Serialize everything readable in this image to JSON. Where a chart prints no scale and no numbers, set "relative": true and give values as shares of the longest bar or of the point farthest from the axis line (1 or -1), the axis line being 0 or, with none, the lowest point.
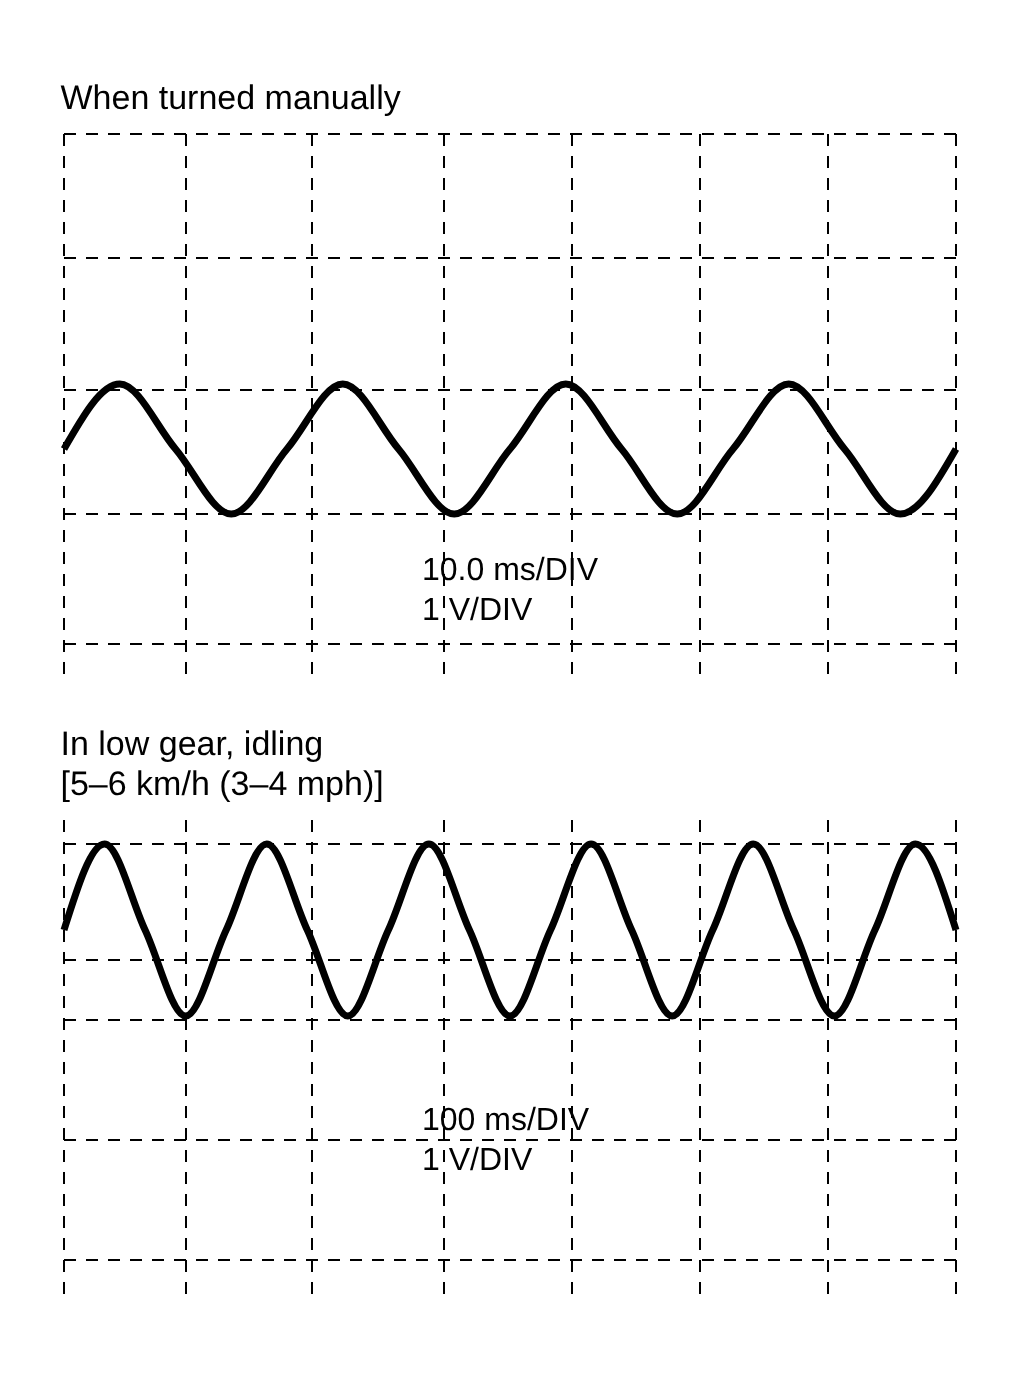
{
  "chart_data": [
    {
      "type": "line",
      "title": "When turned manually",
      "relative": true,
      "grid": true,
      "marker": "none",
      "line_style": "solid",
      "categories": [
        null,
        null,
        null,
        null,
        null,
        null,
        null,
        null,
        null,
        null,
        null,
        null,
        null,
        null,
        null,
        null,
        null
      ],
      "series": [
        {
          "color": "#000000",
          "values": [
            0.5,
            1,
            0.5,
            0,
            0.5,
            1,
            0.5,
            0,
            0.5,
            1,
            0.5,
            0,
            0.5,
            1,
            0.5,
            0,
            0.5
          ]
        }
      ],
      "annotations": [
        "10.0 ms/DIV",
        "1 V/DIV"
      ]
    },
    {
      "type": "line",
      "title": "In low gear, idling",
      "subtitle": "[5–6 km/h (3–4 mph)]",
      "relative": true,
      "grid": true,
      "marker": "none",
      "line_style": "solid",
      "categories": [
        null,
        null,
        null,
        null,
        null,
        null,
        null,
        null,
        null,
        null,
        null,
        null,
        null,
        null,
        null,
        null,
        null,
        null,
        null,
        null,
        null,
        null,
        null
      ],
      "series": [
        {
          "color": "#000000",
          "values": [
            0.5,
            1,
            0.5,
            0,
            0.5,
            1,
            0.5,
            0,
            0.5,
            1,
            0.5,
            0,
            0.5,
            1,
            0.5,
            0,
            0.5,
            1,
            0.5,
            0,
            0.5,
            1,
            0.5
          ]
        }
      ],
      "annotations": [
        "100 ms/DIV",
        "1 V/DIV"
      ]
    }
  ]
}
